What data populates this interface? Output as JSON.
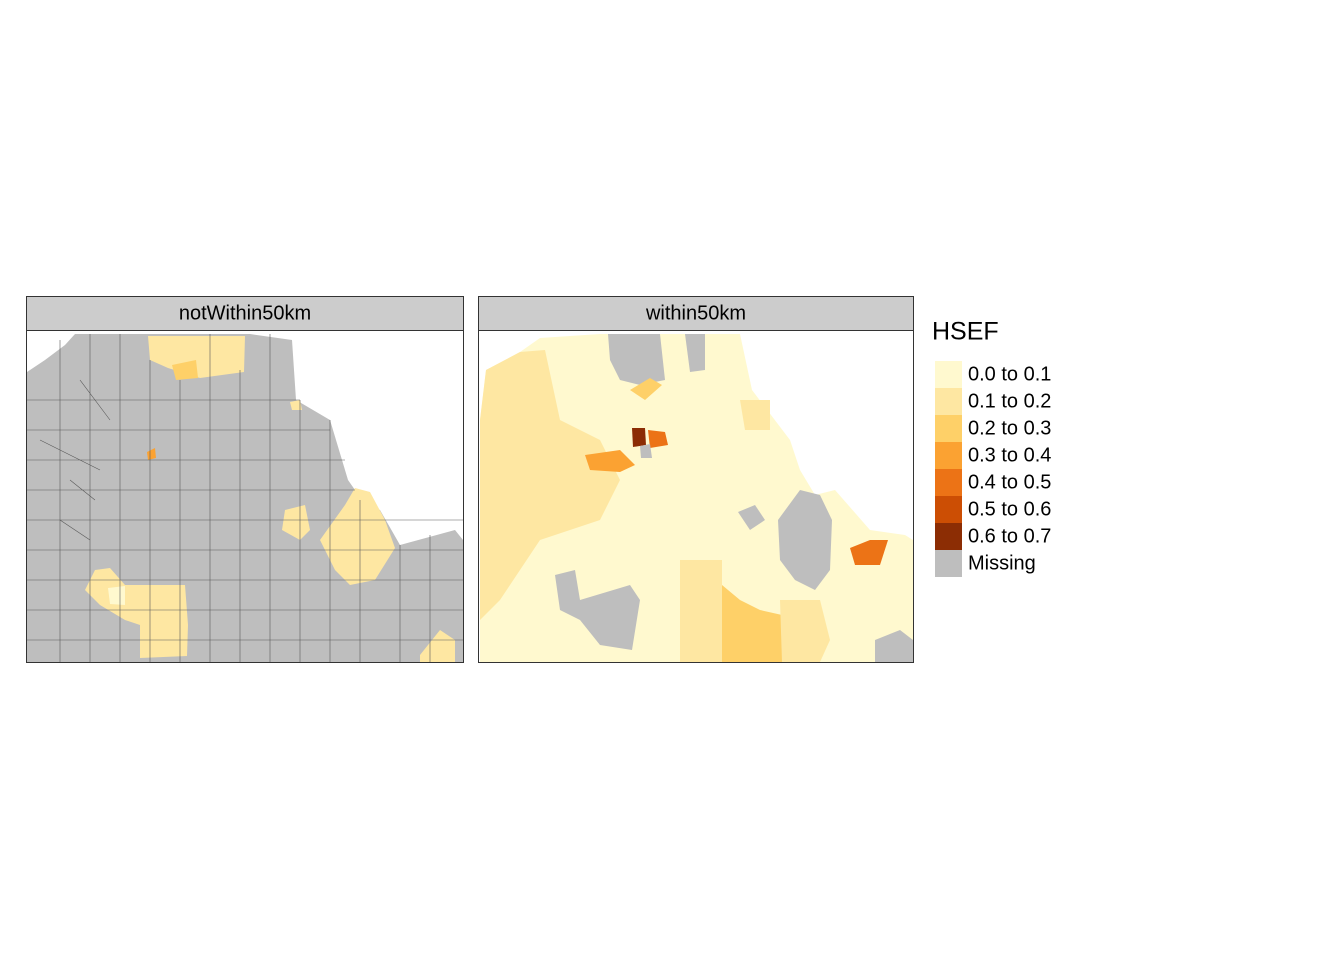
{
  "panels": [
    {
      "title": "notWithin50km"
    },
    {
      "title": "within50km"
    }
  ],
  "legend": {
    "title": "HSEF",
    "items": [
      {
        "label": "0.0 to 0.1",
        "color": "#FFF9CF"
      },
      {
        "label": "0.1 to 0.2",
        "color": "#FEE7A2"
      },
      {
        "label": "0.2 to 0.3",
        "color": "#FED068"
      },
      {
        "label": "0.3 to 0.4",
        "color": "#FBA232"
      },
      {
        "label": "0.4 to 0.5",
        "color": "#EC7316"
      },
      {
        "label": "0.5 to 0.6",
        "color": "#CC4E04"
      },
      {
        "label": "0.6 to 0.7",
        "color": "#8C2D04"
      },
      {
        "label": "Missing",
        "color": "#BEBEBE"
      }
    ]
  }
}
